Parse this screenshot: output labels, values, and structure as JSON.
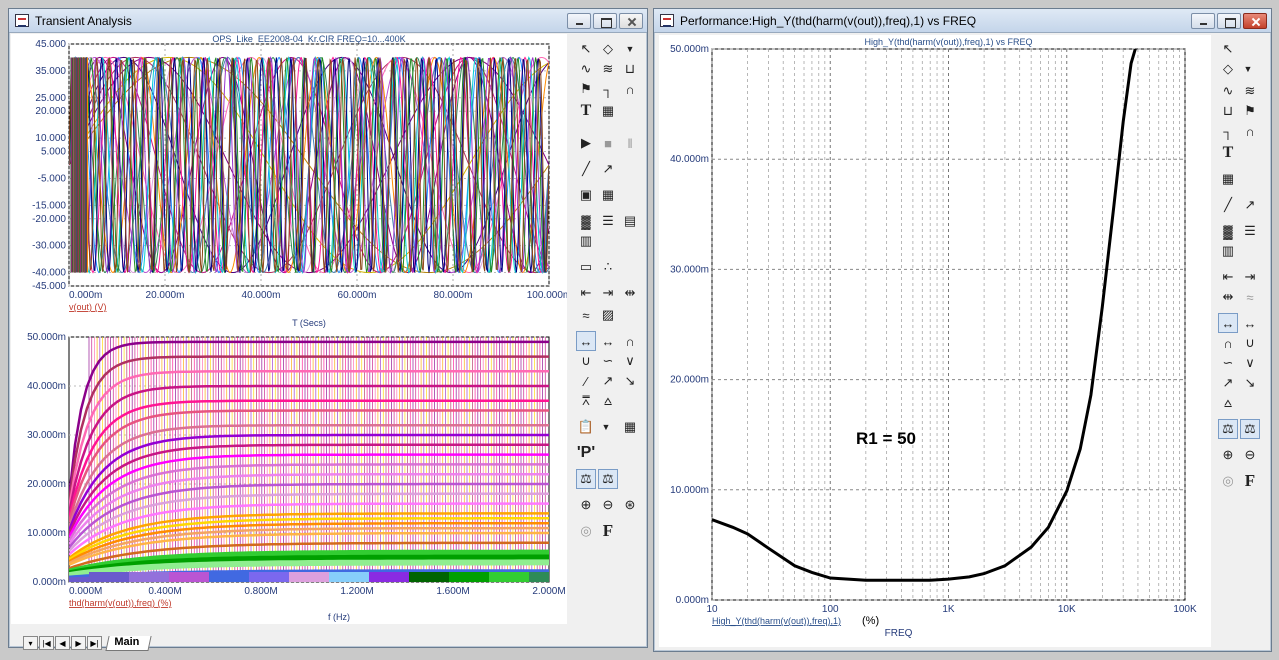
{
  "left_window": {
    "title": "Transient Analysis",
    "top_plot": {
      "title": "OPS_Like_EE2008-04_Kr.CIR FREQ=10...400K",
      "y_ticks": [
        "45.000",
        "35.000",
        "25.000",
        "20.000",
        "10.000",
        "5.000",
        "-5.000",
        "-15.000",
        "-20.000",
        "-30.000",
        "-40.000",
        "-45.000"
      ],
      "x_ticks": [
        "0.000m",
        "20.000m",
        "40.000m",
        "60.000m",
        "80.000m",
        "100.000m"
      ],
      "trace_label": "v(out) (V)",
      "x_axis_label": "T (Secs)",
      "y_range": [
        -45,
        45
      ],
      "x_range": [
        0,
        0.1
      ]
    },
    "bottom_plot": {
      "y_ticks": [
        "50.000m",
        "40.000m",
        "30.000m",
        "20.000m",
        "10.000m",
        "0.000m"
      ],
      "x_ticks": [
        "0.000M",
        "0.400M",
        "0.800M",
        "1.200M",
        "1.600M",
        "2.000M"
      ],
      "trace_label": "thd(harm(v(out)),freq) (%)",
      "x_axis_label": "f (Hz)",
      "y_range": [
        0,
        0.05
      ],
      "x_range": [
        0,
        2000000
      ]
    },
    "tab_nav": [
      "▾",
      "|◀",
      "◀",
      "▶",
      "▶|"
    ],
    "active_tab": "Main"
  },
  "right_window": {
    "title": "Performance:High_Y(thd(harm(v(out)),freq),1) vs FREQ",
    "plot": {
      "title": "High_Y(thd(harm(v(out)),freq),1) vs FREQ",
      "y_ticks": [
        "50.000m",
        "40.000m",
        "30.000m",
        "20.000m",
        "10.000m",
        "0.000m"
      ],
      "x_ticks": [
        "10",
        "100",
        "1K",
        "10K",
        "100K"
      ],
      "trace_label": "High_Y(thd(harm(v(out)),freq),1)",
      "trace_unit": "(%)",
      "x_axis_label": "FREQ",
      "annotation": "R1 = 50",
      "x_scale": "log",
      "grid": true
    }
  },
  "chart_data": [
    {
      "type": "line",
      "name_hint": "transient",
      "title": "OPS_Like_EE2008-04_Kr.CIR FREQ=10...400K",
      "xlabel": "T (Secs)",
      "ylabel": "v(out) (V)",
      "xlim": [
        0,
        0.1
      ],
      "ylim": [
        -45,
        45
      ],
      "amplitude": 40,
      "series": [
        {
          "freq": 10,
          "color": "#b8860b"
        },
        {
          "freq": 12,
          "color": "#d4b400"
        },
        {
          "freq": 15,
          "color": "#800080"
        },
        {
          "freq": 18,
          "color": "#b03060"
        },
        {
          "freq": 22,
          "color": "#4b0082"
        },
        {
          "freq": 27,
          "color": "#c71585"
        },
        {
          "freq": 33,
          "color": "#ff69b4"
        },
        {
          "freq": 39,
          "color": "#8b008b"
        },
        {
          "freq": 47,
          "color": "#ba55d3"
        },
        {
          "freq": 56,
          "color": "#dda0dd"
        },
        {
          "freq": 68,
          "color": "#4682b4"
        },
        {
          "freq": 82,
          "color": "#ff8c00"
        },
        {
          "freq": 100,
          "color": "#2e8b57"
        },
        {
          "freq": 120,
          "color": "#1e90ff"
        },
        {
          "freq": 150,
          "color": "#ff1493"
        },
        {
          "freq": 180,
          "color": "#00ced1"
        },
        {
          "freq": 220,
          "color": "#9932cc"
        },
        {
          "freq": 270,
          "color": "#228b22"
        },
        {
          "freq": 330,
          "color": "#000080"
        },
        {
          "freq": 390,
          "color": "#8b4513"
        }
      ]
    },
    {
      "type": "line",
      "name_hint": "thd_spectrum",
      "xlabel": "f (Hz)",
      "ylabel": "thd(harm(v(out)),freq) (%)",
      "xlim": [
        0,
        2000000
      ],
      "ylim": [
        0,
        0.05
      ],
      "series": [
        {
          "level": 0.049,
          "color": "#8b008b"
        },
        {
          "level": 0.046,
          "color": "#b03060"
        },
        {
          "level": 0.043,
          "color": "#ff69b4"
        },
        {
          "level": 0.04,
          "color": "#c71585"
        },
        {
          "level": 0.037,
          "color": "#ff1493"
        },
        {
          "level": 0.035,
          "color": "#e75480"
        },
        {
          "level": 0.032,
          "color": "#db7093"
        },
        {
          "level": 0.03,
          "color": "#9400d3"
        },
        {
          "level": 0.028,
          "color": "#c71585"
        },
        {
          "level": 0.026,
          "color": "#ff00ff"
        },
        {
          "level": 0.024,
          "color": "#da70d6"
        },
        {
          "level": 0.022,
          "color": "#ee82ee"
        },
        {
          "level": 0.02,
          "color": "#ba55d3"
        },
        {
          "level": 0.018,
          "color": "#dda0dd"
        },
        {
          "level": 0.016,
          "color": "#ff77ff"
        },
        {
          "level": 0.014,
          "color": "#ffa500"
        },
        {
          "level": 0.013,
          "color": "#ffd700"
        },
        {
          "level": 0.012,
          "color": "#ff8c00"
        },
        {
          "level": 0.011,
          "color": "#f4a460"
        },
        {
          "level": 0.01,
          "color": "#ffb347"
        },
        {
          "level": 0.008,
          "color": "#d2691e"
        },
        {
          "level": 0.006,
          "color": "#32cd32"
        },
        {
          "level": 0.005,
          "color": "#00a000"
        },
        {
          "level": 0.004,
          "color": "#90ee90"
        },
        {
          "level": 0.002,
          "color": "#4169e1"
        },
        {
          "level": 0.001,
          "color": "#6a5acd"
        }
      ]
    },
    {
      "type": "line",
      "name_hint": "performance",
      "title": "High_Y(thd(harm(v(out)),freq),1) vs FREQ",
      "xlabel": "FREQ",
      "ylabel": "High_Y(thd(harm(v(out)),freq),1) (%)",
      "xscale": "log",
      "xlim": [
        10,
        100000
      ],
      "ylim": [
        0,
        0.05
      ],
      "series": [
        {
          "color": "#000000",
          "x": [
            10,
            15,
            20,
            30,
            50,
            70,
            100,
            200,
            300,
            500,
            700,
            1000,
            1500,
            2000,
            3000,
            5000,
            7000,
            10000,
            13000,
            16000,
            20000,
            25000,
            30000,
            35000,
            38000
          ],
          "y": [
            0.0073,
            0.0066,
            0.006,
            0.0047,
            0.0031,
            0.0025,
            0.002,
            0.0018,
            0.0018,
            0.0018,
            0.0018,
            0.0019,
            0.0021,
            0.0024,
            0.0031,
            0.0048,
            0.0066,
            0.0099,
            0.0137,
            0.0186,
            0.0266,
            0.0357,
            0.0434,
            0.0487,
            0.05
          ]
        }
      ]
    }
  ]
}
